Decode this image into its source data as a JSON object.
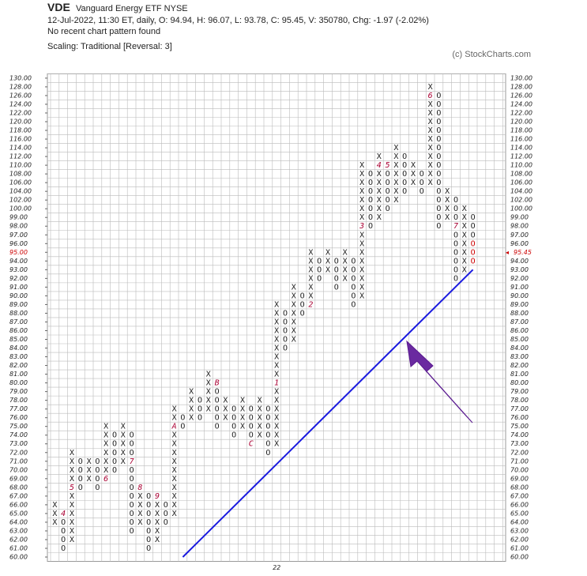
{
  "chart_data": {
    "type": "pnf",
    "symbol": "VDE",
    "name": "Vanguard Energy ETF  NYSE",
    "info": "12-Jul-2022, 11:30 ET, daily, O: 94.94, H: 96.07, L: 93.78, C: 95.45, V: 350780, Chg: -1.97 (-2.02%)",
    "pattern": "No recent chart pattern found",
    "scaling": "Scaling: Traditional [Reversal: 3]",
    "credit": "(c) StockCharts.com",
    "yticks": [
      {
        "value": 60,
        "label": "60.00"
      },
      {
        "value": 61,
        "label": "61.00"
      },
      {
        "value": 62,
        "label": "62.00"
      },
      {
        "value": 63,
        "label": "63.00"
      },
      {
        "value": 64,
        "label": "64.00"
      },
      {
        "value": 65,
        "label": "65.00"
      },
      {
        "value": 66,
        "label": "66.00"
      },
      {
        "value": 67,
        "label": "67.00"
      },
      {
        "value": 68,
        "label": "68.00"
      },
      {
        "value": 69,
        "label": "69.00"
      },
      {
        "value": 70,
        "label": "70.00"
      },
      {
        "value": 71,
        "label": "71.00"
      },
      {
        "value": 72,
        "label": "72.00"
      },
      {
        "value": 73,
        "label": "73.00"
      },
      {
        "value": 74,
        "label": "74.00"
      },
      {
        "value": 75,
        "label": "75.00"
      },
      {
        "value": 76,
        "label": "76.00"
      },
      {
        "value": 77,
        "label": "77.00"
      },
      {
        "value": 78,
        "label": "78.00"
      },
      {
        "value": 79,
        "label": "79.00"
      },
      {
        "value": 80,
        "label": "80.00"
      },
      {
        "value": 81,
        "label": "81.00"
      },
      {
        "value": 82,
        "label": "82.00"
      },
      {
        "value": 83,
        "label": "83.00"
      },
      {
        "value": 84,
        "label": "84.00"
      },
      {
        "value": 85,
        "label": "85.00"
      },
      {
        "value": 86,
        "label": "86.00"
      },
      {
        "value": 87,
        "label": "87.00"
      },
      {
        "value": 88,
        "label": "88.00"
      },
      {
        "value": 89,
        "label": "89.00"
      },
      {
        "value": 90,
        "label": "90.00"
      },
      {
        "value": 91,
        "label": "91.00"
      },
      {
        "value": 92,
        "label": "92.00"
      },
      {
        "value": 93,
        "label": "93.00"
      },
      {
        "value": 94,
        "label": "94.00"
      },
      {
        "value": 95,
        "label": "95.00"
      },
      {
        "value": 96,
        "label": "96.00"
      },
      {
        "value": 97,
        "label": "97.00"
      },
      {
        "value": 98,
        "label": "98.00"
      },
      {
        "value": 99,
        "label": "99.00"
      },
      {
        "value": 100,
        "label": "100.00"
      },
      {
        "value": 102,
        "label": "102.00"
      },
      {
        "value": 104,
        "label": "104.00"
      },
      {
        "value": 106,
        "label": "106.00"
      },
      {
        "value": 108,
        "label": "108.00"
      },
      {
        "value": 110,
        "label": "110.00"
      },
      {
        "value": 112,
        "label": "112.00"
      },
      {
        "value": 114,
        "label": "114.00"
      },
      {
        "value": 116,
        "label": "116.00"
      },
      {
        "value": 118,
        "label": "118.00"
      },
      {
        "value": 120,
        "label": "120.00"
      },
      {
        "value": 122,
        "label": "122.00"
      },
      {
        "value": 124,
        "label": "124.00"
      },
      {
        "value": 126,
        "label": "126.00"
      },
      {
        "value": 128,
        "label": "128.00"
      },
      {
        "value": 130,
        "label": "130.00"
      }
    ],
    "current_level": 95,
    "last_price": 95.45,
    "highlight_color": "#cc0000",
    "marker_color": "#aa0033",
    "trend_color": "#1a1adf",
    "columns": [
      {
        "symbol": "X",
        "from": 64,
        "to": 66
      },
      {
        "symbol": "O",
        "from": 65,
        "to": 61
      },
      {
        "symbol": "X",
        "from": 62,
        "to": 72
      },
      {
        "symbol": "O",
        "from": 71,
        "to": 68
      },
      {
        "symbol": "X",
        "from": 69,
        "to": 71
      },
      {
        "symbol": "O",
        "from": 71,
        "to": 68
      },
      {
        "symbol": "X",
        "from": 69,
        "to": 75
      },
      {
        "symbol": "O",
        "from": 74,
        "to": 70
      },
      {
        "symbol": "X",
        "from": 71,
        "to": 75
      },
      {
        "symbol": "O",
        "from": 74,
        "to": 63
      },
      {
        "symbol": "X",
        "from": 64,
        "to": 68
      },
      {
        "symbol": "O",
        "from": 67,
        "to": 61
      },
      {
        "symbol": "X",
        "from": 62,
        "to": 67
      },
      {
        "symbol": "O",
        "from": 66,
        "to": 64
      },
      {
        "symbol": "X",
        "from": 65,
        "to": 77
      },
      {
        "symbol": "O",
        "from": 76,
        "to": 75
      },
      {
        "symbol": "X",
        "from": 76,
        "to": 79
      },
      {
        "symbol": "O",
        "from": 78,
        "to": 76
      },
      {
        "symbol": "X",
        "from": 77,
        "to": 81
      },
      {
        "symbol": "O",
        "from": 80,
        "to": 75
      },
      {
        "symbol": "X",
        "from": 76,
        "to": 78
      },
      {
        "symbol": "O",
        "from": 77,
        "to": 74
      },
      {
        "symbol": "X",
        "from": 75,
        "to": 78
      },
      {
        "symbol": "O",
        "from": 77,
        "to": 73
      },
      {
        "symbol": "X",
        "from": 74,
        "to": 78
      },
      {
        "symbol": "O",
        "from": 77,
        "to": 72
      },
      {
        "symbol": "X",
        "from": 73,
        "to": 89
      },
      {
        "symbol": "O",
        "from": 88,
        "to": 84
      },
      {
        "symbol": "X",
        "from": 85,
        "to": 91
      },
      {
        "symbol": "O",
        "from": 90,
        "to": 88
      },
      {
        "symbol": "X",
        "from": 89,
        "to": 95
      },
      {
        "symbol": "O",
        "from": 94,
        "to": 92
      },
      {
        "symbol": "X",
        "from": 93,
        "to": 95
      },
      {
        "symbol": "O",
        "from": 94,
        "to": 91
      },
      {
        "symbol": "X",
        "from": 92,
        "to": 95
      },
      {
        "symbol": "O",
        "from": 94,
        "to": 89
      },
      {
        "symbol": "X",
        "from": 90,
        "to": 110
      },
      {
        "symbol": "O",
        "from": 108,
        "to": 98
      },
      {
        "symbol": "X",
        "from": 99,
        "to": 112
      },
      {
        "symbol": "O",
        "from": 110,
        "to": 100
      },
      {
        "symbol": "X",
        "from": 101,
        "to": 114
      },
      {
        "symbol": "O",
        "from": 112,
        "to": 104
      },
      {
        "symbol": "X",
        "from": 106,
        "to": 110
      },
      {
        "symbol": "O",
        "from": 108,
        "to": 104
      },
      {
        "symbol": "X",
        "from": 106,
        "to": 128
      },
      {
        "symbol": "O",
        "from": 126,
        "to": 98
      },
      {
        "symbol": "X",
        "from": 99,
        "to": 104
      },
      {
        "symbol": "O",
        "from": 102,
        "to": 92
      },
      {
        "symbol": "X",
        "from": 93,
        "to": 100
      },
      {
        "symbol": "O",
        "from": 99,
        "to": 94,
        "highlight_from": 96
      }
    ],
    "markers": [
      {
        "column": 1,
        "value": 65,
        "label": "4"
      },
      {
        "column": 2,
        "value": 68,
        "label": "5"
      },
      {
        "column": 6,
        "value": 69,
        "label": "6"
      },
      {
        "column": 9,
        "value": 71,
        "label": "7"
      },
      {
        "column": 10,
        "value": 68,
        "label": "8"
      },
      {
        "column": 12,
        "value": 67,
        "label": "9"
      },
      {
        "column": 14,
        "value": 75,
        "label": "A"
      },
      {
        "column": 19,
        "value": 80,
        "label": "B"
      },
      {
        "column": 23,
        "value": 73,
        "label": "C"
      },
      {
        "column": 26,
        "value": 80,
        "label": "1"
      },
      {
        "column": 30,
        "value": 89,
        "label": "2"
      },
      {
        "column": 36,
        "value": 98,
        "label": "3"
      },
      {
        "column": 38,
        "value": 110,
        "label": "4"
      },
      {
        "column": 39,
        "value": 110,
        "label": "5"
      },
      {
        "column": 44,
        "value": 126,
        "label": "6"
      },
      {
        "column": 47,
        "value": 98,
        "label": "7"
      }
    ],
    "xlabels": [
      {
        "column": 26,
        "label": "22"
      }
    ],
    "trendline": {
      "start_column": 15,
      "start_value": 60,
      "end_column": 49,
      "end_value": 93
    }
  }
}
